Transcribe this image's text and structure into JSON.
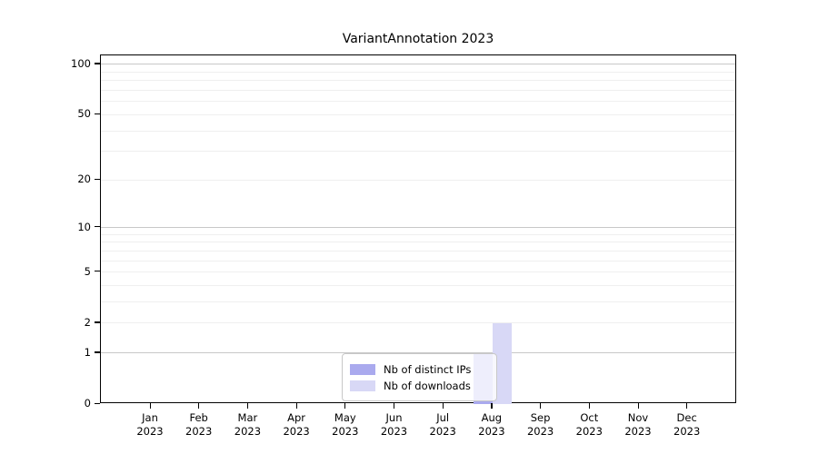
{
  "chart_data": {
    "type": "bar",
    "title": "VariantAnnotation 2023",
    "categories": [
      "Jan",
      "Feb",
      "Mar",
      "Apr",
      "May",
      "Jun",
      "Jul",
      "Aug",
      "Sep",
      "Oct",
      "Nov",
      "Dec"
    ],
    "year_label": "2023",
    "series": [
      {
        "name": "Nb of distinct IPs",
        "color": "#aaaaee",
        "values": [
          0,
          0,
          0,
          0,
          0,
          0,
          0,
          1,
          0,
          0,
          0,
          0
        ]
      },
      {
        "name": "Nb of downloads",
        "color": "#d8d8f6",
        "values": [
          0,
          0,
          0,
          0,
          0,
          0,
          0,
          2,
          0,
          0,
          0,
          0
        ]
      }
    ],
    "y_scale": "log1p",
    "y_ticks": [
      "0",
      "1",
      "2",
      "5",
      "10",
      "20",
      "50",
      "100"
    ],
    "y_tick_values": [
      0,
      1,
      2,
      5,
      10,
      20,
      50,
      100
    ],
    "minor_grid_values": [
      2,
      3,
      4,
      5,
      6,
      7,
      8,
      9,
      20,
      30,
      40,
      50,
      60,
      70,
      80,
      90
    ],
    "major_grid_values": [
      1,
      10,
      100
    ],
    "ylim_top": 113.2,
    "grid": "horizontal",
    "legend_position": "inside-bottom-center",
    "colors": {
      "axis": "#000000",
      "major_grid": "#c8c8c8",
      "minor_grid": "#efefef",
      "background": "#ffffff"
    }
  }
}
